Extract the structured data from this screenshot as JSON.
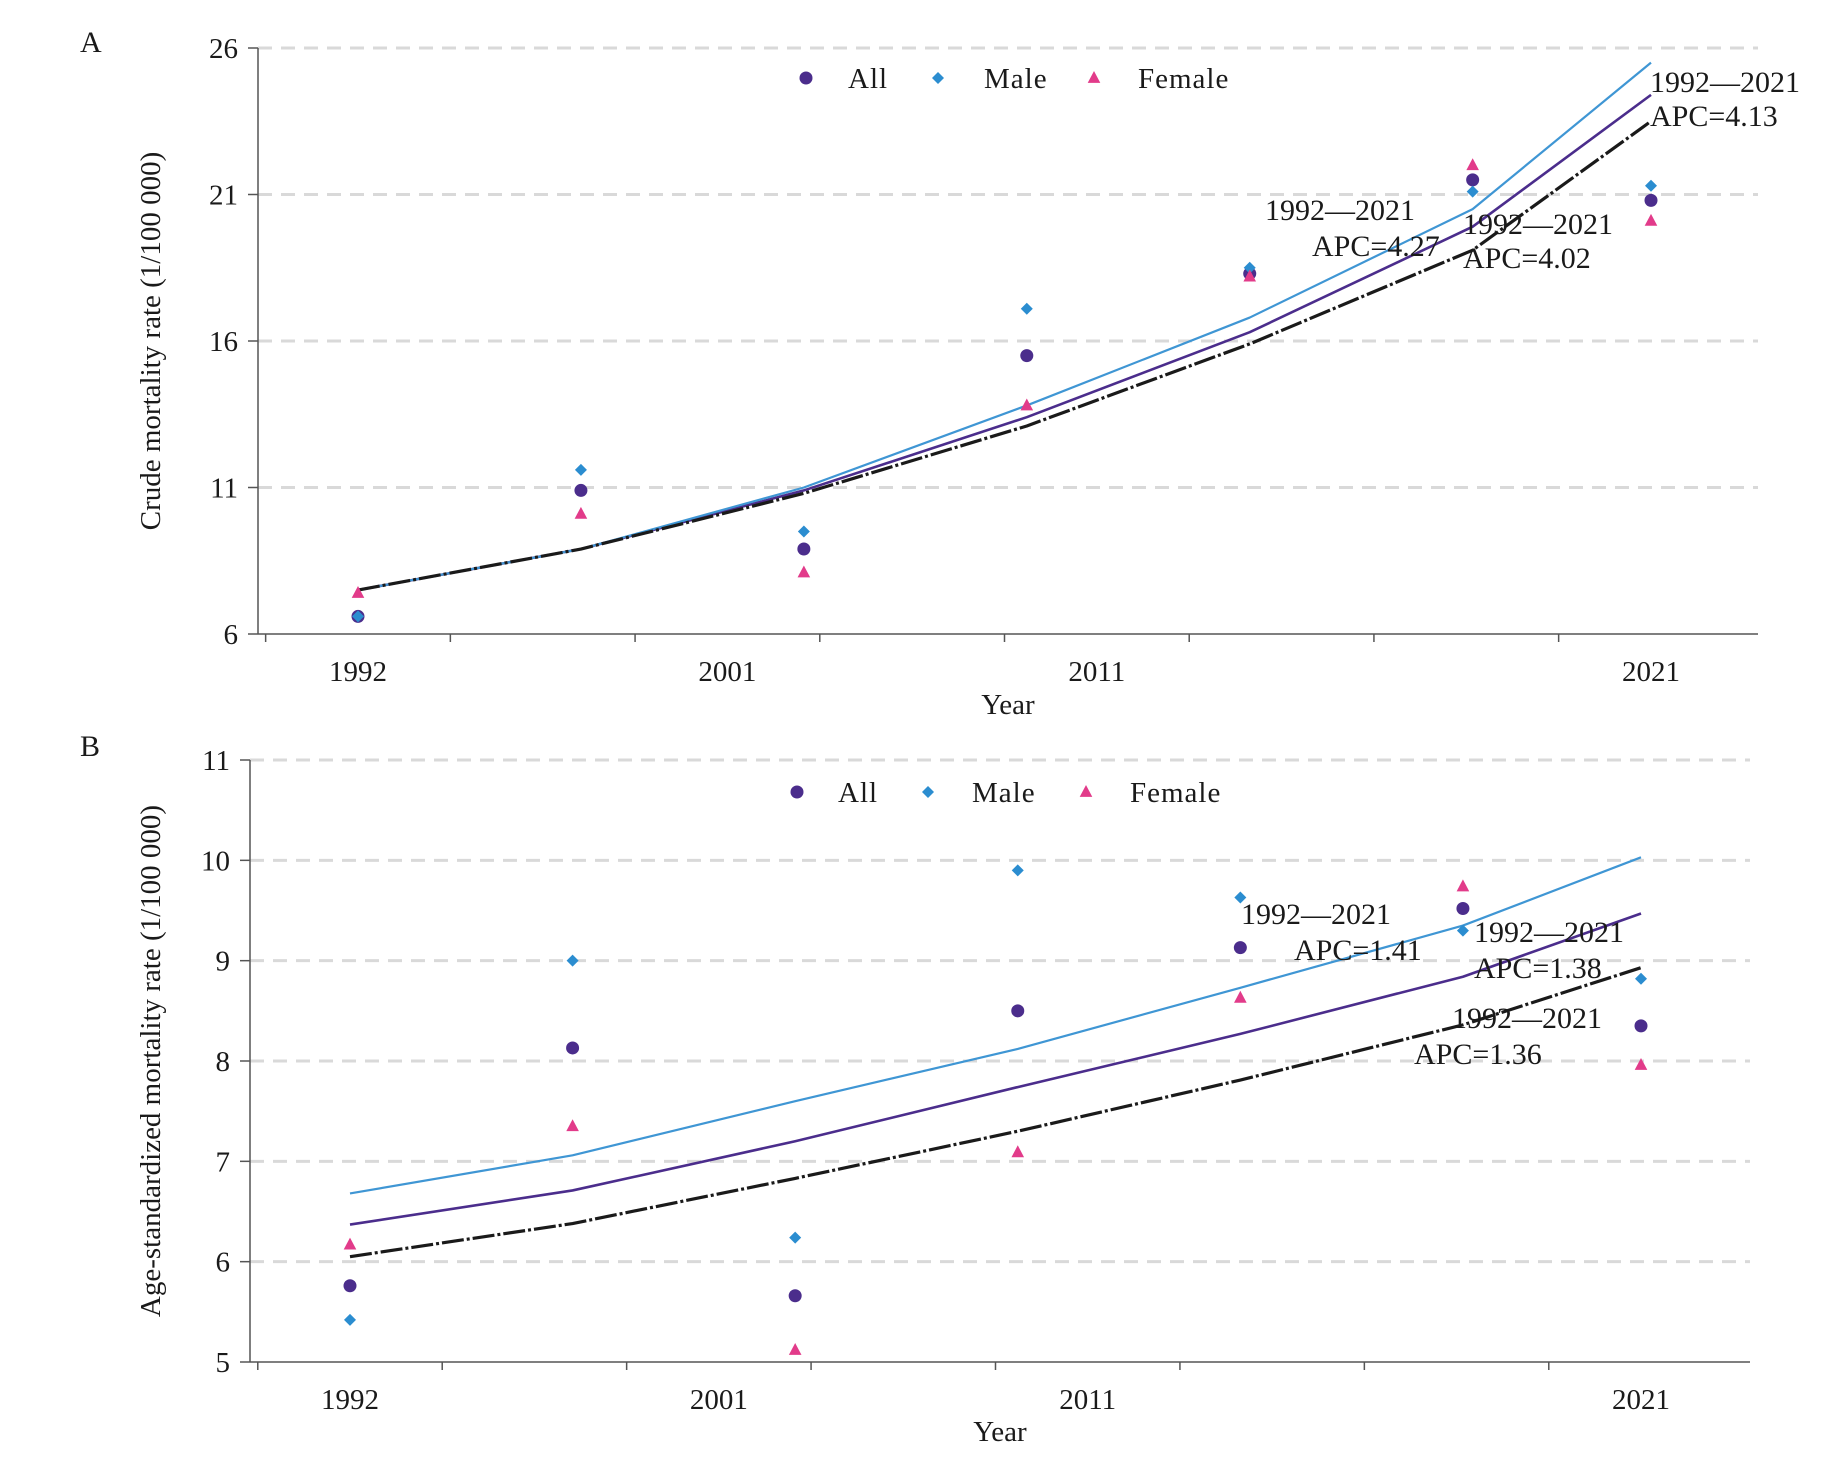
{
  "chart_data": [
    {
      "panel": "A",
      "type": "scatter",
      "xlabel": "Year",
      "ylabel": "Crude mortality rate (1/100 000)",
      "xlim": [
        1992,
        2021
      ],
      "x_ticks": [
        "1992",
        "2001",
        "2011",
        "2021"
      ],
      "ylim": [
        6,
        26
      ],
      "y_ticks": [
        "6",
        "11",
        "16",
        "21",
        "26"
      ],
      "grid": "horizontal dashed",
      "legend_position": "top-center",
      "x": [
        1992,
        1997,
        2002,
        2007,
        2012,
        2017,
        2021
      ],
      "series": [
        {
          "name": "All",
          "marker": "circle",
          "color": "#4b2d8c",
          "values": [
            6.6,
            10.9,
            8.9,
            15.5,
            18.3,
            21.5,
            20.8
          ],
          "fit": [
            7.5,
            8.9,
            10.9,
            13.4,
            16.3,
            19.9,
            24.4
          ]
        },
        {
          "name": "Male",
          "marker": "diamond",
          "color": "#2b8dd0",
          "values": [
            6.6,
            11.6,
            9.5,
            17.1,
            18.5,
            21.1,
            21.3
          ],
          "fit": [
            7.5,
            8.9,
            11.0,
            13.8,
            16.8,
            20.5,
            25.5
          ]
        },
        {
          "name": "Female",
          "marker": "triangle",
          "color": "#e23b8a",
          "values": [
            7.4,
            10.1,
            8.1,
            13.8,
            18.2,
            22.0,
            20.1
          ],
          "fit": [
            7.5,
            8.9,
            10.8,
            13.1,
            15.9,
            19.1,
            23.5
          ]
        }
      ],
      "annotations": [
        {
          "period": "1992—2021",
          "apc": "APC=4.27"
        },
        {
          "period": "1992—2021",
          "apc": "APC=4.13"
        },
        {
          "period": "1992—2021",
          "apc": "APC=4.02"
        }
      ]
    },
    {
      "panel": "B",
      "type": "scatter",
      "xlabel": "Year",
      "ylabel": "Age-standardized mortality rate (1/100 000)",
      "xlim": [
        1992,
        2021
      ],
      "x_ticks": [
        "1992",
        "2001",
        "2011",
        "2021"
      ],
      "ylim": [
        5,
        11
      ],
      "y_ticks": [
        "5",
        "6",
        "7",
        "8",
        "9",
        "10",
        "11"
      ],
      "grid": "horizontal dashed",
      "legend_position": "top-center",
      "x": [
        1992,
        1997,
        2002,
        2007,
        2012,
        2017,
        2021
      ],
      "series": [
        {
          "name": "All",
          "marker": "circle",
          "color": "#4b2d8c",
          "values": [
            5.76,
            8.13,
            5.66,
            8.5,
            9.13,
            9.52,
            8.35
          ],
          "fit": [
            6.37,
            6.71,
            7.2,
            7.74,
            8.27,
            8.84,
            9.47
          ]
        },
        {
          "name": "Male",
          "marker": "diamond",
          "color": "#2b8dd0",
          "values": [
            5.42,
            9.0,
            6.24,
            9.9,
            9.63,
            9.3,
            8.82
          ],
          "fit": [
            6.68,
            7.06,
            7.6,
            8.12,
            8.73,
            9.35,
            10.03
          ]
        },
        {
          "name": "Female",
          "marker": "triangle",
          "color": "#e23b8a",
          "values": [
            6.17,
            7.35,
            5.12,
            7.09,
            8.63,
            9.74,
            7.96
          ],
          "fit": [
            6.05,
            6.38,
            6.83,
            7.3,
            7.81,
            8.36,
            8.93
          ]
        }
      ],
      "annotations": [
        {
          "period": "1992—2021",
          "apc": "APC=1.41"
        },
        {
          "period": "1992—2021",
          "apc": "APC=1.38"
        },
        {
          "period": "1992—2021",
          "apc": "APC=1.36"
        }
      ]
    }
  ]
}
